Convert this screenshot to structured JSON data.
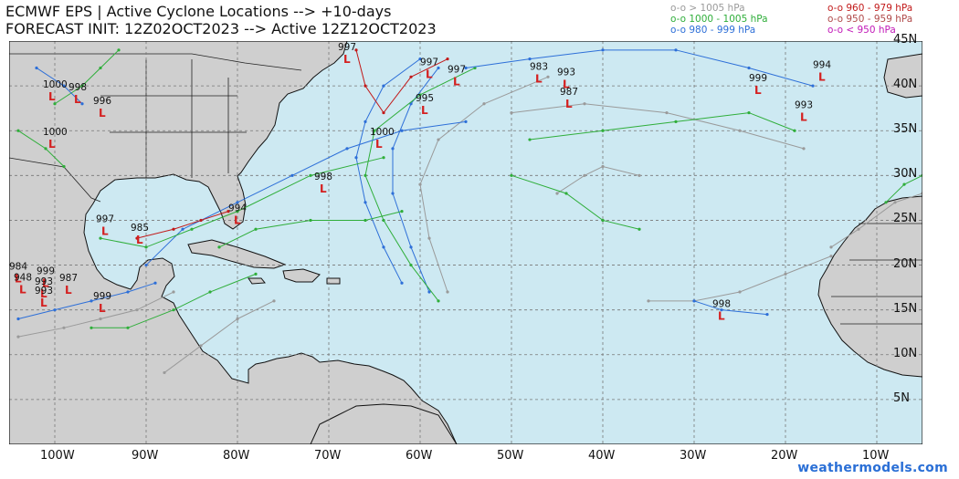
{
  "header": {
    "line1": "ECMWF EPS | Active Cyclone Locations --> +10-days",
    "line2": "FORECAST INIT: 12Z02OCT2023 --> Active 12Z12OCT2023"
  },
  "legend": [
    {
      "label": "o-o > 1005 hPa",
      "color": "#9a9a9a"
    },
    {
      "label": "o-o 1000 - 1005 hPa",
      "color": "#2fae3a"
    },
    {
      "label": "o-o 980 - 999 hPa",
      "color": "#2d6fd8"
    },
    {
      "label": "o-o 960 - 979 hPa",
      "color": "#c21a1a"
    },
    {
      "label": "o-o 950 - 959 hPa",
      "color": "#b04a4a"
    },
    {
      "label": "o-o < 950 hPa",
      "color": "#c21ab8"
    }
  ],
  "map": {
    "lon_range": [
      -105,
      -5
    ],
    "lat_range": [
      0,
      45
    ],
    "ocean_color": "#cde9f2",
    "land_color": "#cfcfcf",
    "grid": true,
    "lon_ticks": [
      {
        "lon": -100,
        "label": "100W"
      },
      {
        "lon": -90,
        "label": "90W"
      },
      {
        "lon": -80,
        "label": "80W"
      },
      {
        "lon": -70,
        "label": "70W"
      },
      {
        "lon": -60,
        "label": "60W"
      },
      {
        "lon": -50,
        "label": "50W"
      },
      {
        "lon": -40,
        "label": "40W"
      },
      {
        "lon": -30,
        "label": "30W"
      },
      {
        "lon": -20,
        "label": "20W"
      },
      {
        "lon": -10,
        "label": "10W"
      }
    ],
    "lat_ticks": [
      {
        "lat": 45,
        "label": "45N"
      },
      {
        "lat": 40,
        "label": "40N"
      },
      {
        "lat": 35,
        "label": "35N"
      },
      {
        "lat": 30,
        "label": "30N"
      },
      {
        "lat": 25,
        "label": "25N"
      },
      {
        "lat": 20,
        "label": "20N"
      },
      {
        "lat": 15,
        "label": "15N"
      },
      {
        "lat": 10,
        "label": "10N"
      },
      {
        "lat": 5,
        "label": "5N"
      }
    ],
    "pressure_labels": [
      {
        "text": "997",
        "lon": -69.0,
        "lat": 44.0
      },
      {
        "text": "997",
        "lon": -60.0,
        "lat": 42.3
      },
      {
        "text": "997",
        "lon": -57.0,
        "lat": 41.5
      },
      {
        "text": "983",
        "lon": -48.0,
        "lat": 41.8
      },
      {
        "text": "993",
        "lon": -45.0,
        "lat": 41.2
      },
      {
        "text": "987",
        "lon": -44.7,
        "lat": 39.0
      },
      {
        "text": "995",
        "lon": -60.5,
        "lat": 38.3
      },
      {
        "text": "1000",
        "lon": -65.5,
        "lat": 34.5
      },
      {
        "text": "999",
        "lon": -24.0,
        "lat": 40.5
      },
      {
        "text": "994",
        "lon": -17.0,
        "lat": 42.0
      },
      {
        "text": "993",
        "lon": -19.0,
        "lat": 37.5
      },
      {
        "text": "1000",
        "lon": -101.3,
        "lat": 39.8
      },
      {
        "text": "998",
        "lon": -98.5,
        "lat": 39.5
      },
      {
        "text": "996",
        "lon": -95.8,
        "lat": 38.0
      },
      {
        "text": "1000",
        "lon": -101.3,
        "lat": 34.5
      },
      {
        "text": "998",
        "lon": -71.6,
        "lat": 29.5
      },
      {
        "text": "994",
        "lon": -81.0,
        "lat": 26.0
      },
      {
        "text": "997",
        "lon": -95.5,
        "lat": 24.8
      },
      {
        "text": "985",
        "lon": -91.7,
        "lat": 23.8
      },
      {
        "text": "984",
        "lon": -105.0,
        "lat": 19.5
      },
      {
        "text": "999",
        "lon": -102.0,
        "lat": 19.0
      },
      {
        "text": "948",
        "lon": -104.5,
        "lat": 18.3
      },
      {
        "text": "987",
        "lon": -99.5,
        "lat": 18.2
      },
      {
        "text": "993",
        "lon": -102.2,
        "lat": 17.8
      },
      {
        "text": "993",
        "lon": -102.2,
        "lat": 16.8
      },
      {
        "text": "999",
        "lon": -95.8,
        "lat": 16.2
      },
      {
        "text": "998",
        "lon": -28.0,
        "lat": 15.3
      }
    ]
  },
  "credit": "weathermodels.com"
}
